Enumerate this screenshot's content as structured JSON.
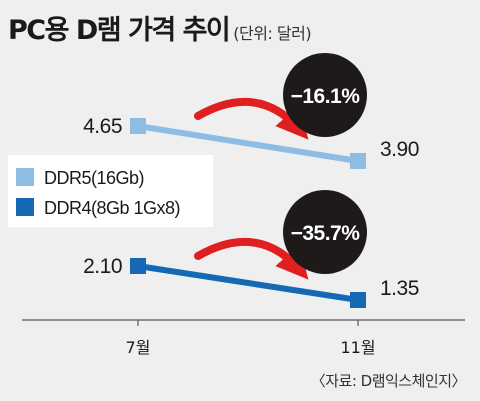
{
  "header": {
    "title": "PC용 D램 가격 추이",
    "unit": "(단위: 달러)"
  },
  "source": "〈자료: D램익스체인지〉",
  "chart_data": {
    "type": "line",
    "title": "PC용 D램 가격 추이",
    "unit": "(단위: 달러)",
    "categories": [
      "7월",
      "11월"
    ],
    "series": [
      {
        "name": "DDR5(16Gb)",
        "values": [
          4.65,
          3.9
        ],
        "labels": [
          "4.65",
          "3.90"
        ],
        "change": "−16.1%",
        "color": "#8fbce2"
      },
      {
        "name": "DDR4(8Gb 1Gx8)",
        "values": [
          2.1,
          1.35
        ],
        "labels": [
          "2.10",
          "1.35"
        ],
        "change": "−35.7%",
        "color": "#1569b4"
      }
    ],
    "legend_position": "left",
    "grid": false,
    "arrow_color": "#e02020",
    "bubble_color": "#1e1a1a"
  }
}
